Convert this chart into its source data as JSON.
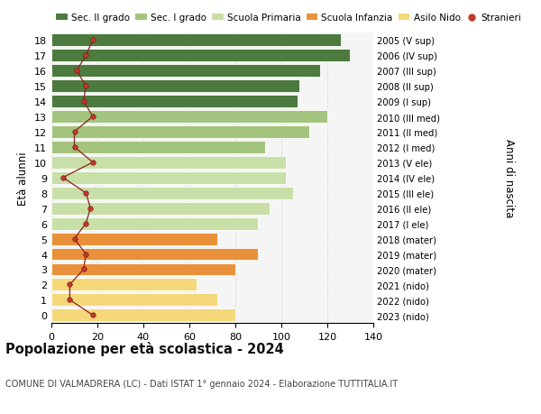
{
  "ages": [
    0,
    1,
    2,
    3,
    4,
    5,
    6,
    7,
    8,
    9,
    10,
    11,
    12,
    13,
    14,
    15,
    16,
    17,
    18
  ],
  "bar_values": [
    80,
    72,
    63,
    80,
    90,
    72,
    90,
    95,
    105,
    102,
    102,
    93,
    112,
    120,
    107,
    108,
    117,
    130,
    126
  ],
  "bar_colors": [
    "#f5d87a",
    "#f5d87a",
    "#f5d87a",
    "#e8913a",
    "#e8913a",
    "#e8913a",
    "#c8dfa8",
    "#c8dfa8",
    "#c8dfa8",
    "#c8dfa8",
    "#c8dfa8",
    "#a3c47c",
    "#a3c47c",
    "#a3c47c",
    "#4d7a3e",
    "#4d7a3e",
    "#4d7a3e",
    "#4d7a3e",
    "#4d7a3e"
  ],
  "stranieri_values": [
    18,
    8,
    8,
    14,
    15,
    10,
    15,
    17,
    15,
    5,
    18,
    10,
    10,
    18,
    14,
    15,
    11,
    15,
    18
  ],
  "right_labels": [
    "2023 (nido)",
    "2022 (nido)",
    "2021 (nido)",
    "2020 (mater)",
    "2019 (mater)",
    "2018 (mater)",
    "2017 (I ele)",
    "2016 (II ele)",
    "2015 (III ele)",
    "2014 (IV ele)",
    "2013 (V ele)",
    "2012 (I med)",
    "2011 (II med)",
    "2010 (III med)",
    "2009 (I sup)",
    "2008 (II sup)",
    "2007 (III sup)",
    "2006 (IV sup)",
    "2005 (V sup)"
  ],
  "legend_labels": [
    "Sec. II grado",
    "Sec. I grado",
    "Scuola Primaria",
    "Scuola Infanzia",
    "Asilo Nido",
    "Stranieri"
  ],
  "legend_colors": [
    "#4d7a3e",
    "#a3c47c",
    "#c8dfa8",
    "#e8913a",
    "#f5d87a",
    "#c0392b"
  ],
  "title": "Popolazione per età scolastica - 2024",
  "subtitle": "COMUNE DI VALMADRERA (LC) - Dati ISTAT 1° gennaio 2024 - Elaborazione TUTTITALIA.IT",
  "ylabel": "Età alunni",
  "right_ylabel": "Anni di nascita",
  "xlim": [
    0,
    140
  ],
  "xticks": [
    0,
    20,
    40,
    60,
    80,
    100,
    120,
    140
  ],
  "background_color": "#ffffff",
  "plot_bg_color": "#f5f5f5",
  "bar_height": 0.82,
  "grid_color": "#cccccc",
  "bar_edge_color": "#ffffff"
}
